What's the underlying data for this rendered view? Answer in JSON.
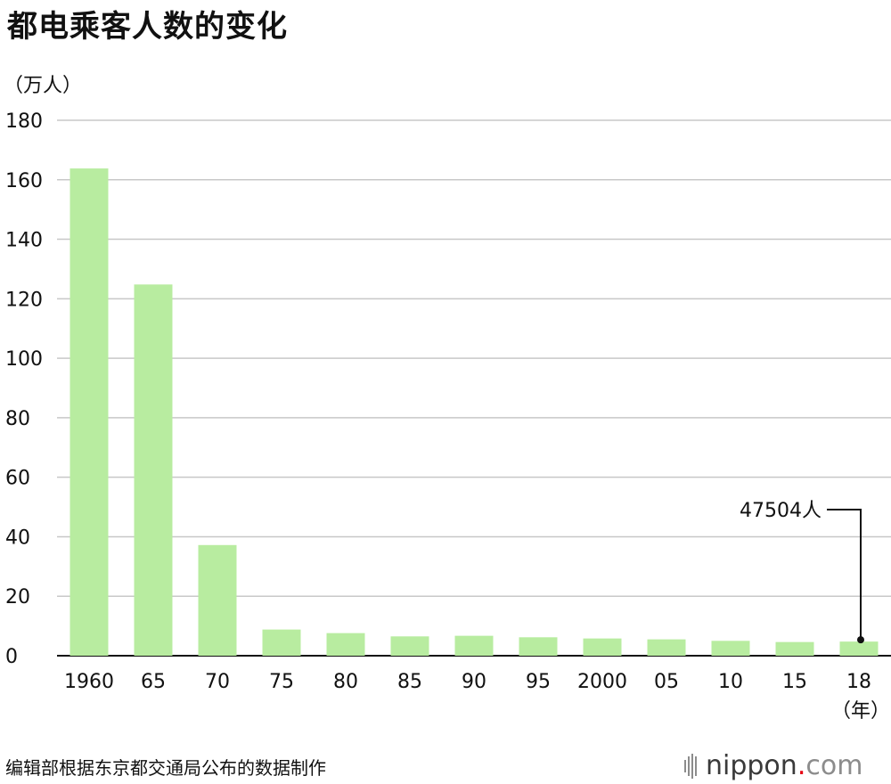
{
  "title": "都电乘客人数的变化",
  "unit_label": "（万人）",
  "source_note": "编辑部根据东京都交通局公布的数据制作",
  "logo": {
    "name": "nippon",
    "dot": ".",
    "tld": "com"
  },
  "chart_data": {
    "type": "bar",
    "categories": [
      "1960",
      "65",
      "70",
      "75",
      "80",
      "85",
      "90",
      "95",
      "2000",
      "05",
      "10",
      "15",
      "18"
    ],
    "values": [
      163.8,
      124.8,
      37.2,
      8.8,
      7.6,
      6.5,
      6.7,
      6.2,
      5.8,
      5.5,
      5.0,
      4.6,
      4.75
    ],
    "ylim": [
      0,
      180
    ],
    "yticks": [
      0,
      20,
      40,
      60,
      80,
      100,
      120,
      140,
      160,
      180
    ],
    "xlabel_suffix": "（年）",
    "grid": true,
    "bar_color": "#b8eca0",
    "annotation": {
      "text": "47504人",
      "category": "18",
      "value": 4.75
    }
  }
}
